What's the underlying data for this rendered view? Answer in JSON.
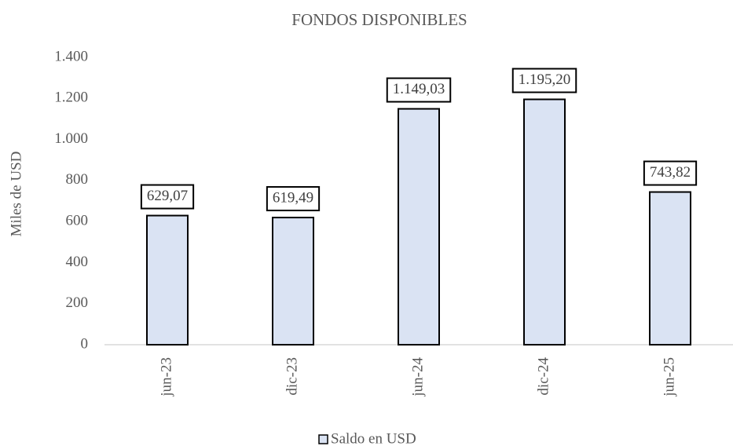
{
  "chart_data": {
    "type": "bar",
    "title": "FONDOS DISPONIBLES",
    "y_label": "Miles de USD",
    "categories": [
      "jun-23",
      "dic-23",
      "jun-24",
      "dic-24",
      "jun-25"
    ],
    "series": [
      {
        "name": "Saldo en USD",
        "color": "#dae3f3",
        "values": [
          629.07,
          619.49,
          1149.03,
          1195.2,
          743.82
        ],
        "value_labels": [
          "629,07",
          "619,49",
          "1.149,03",
          "1.195,20",
          "743,82"
        ]
      }
    ],
    "ylim": [
      0,
      1400
    ],
    "yticks": [
      0,
      200,
      400,
      600,
      800,
      {
        "value": 1000,
        "label": "1.000"
      },
      {
        "value": 1200,
        "label": "1.200"
      },
      {
        "value": 1400,
        "label": "1.400"
      }
    ],
    "grid": false,
    "legend": "bottom"
  }
}
